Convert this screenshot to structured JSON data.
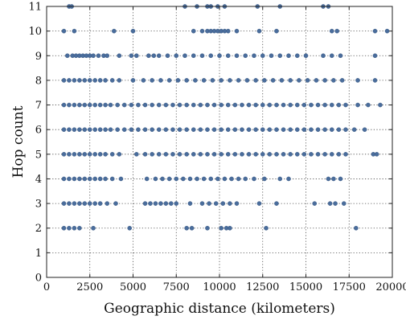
{
  "chart_data": {
    "type": "scatter",
    "xlabel": "Geographic distance (kilometers)",
    "ylabel": "Hop count",
    "xlim": [
      0,
      20000
    ],
    "ylim": [
      0,
      11
    ],
    "x_ticks": [
      0,
      2500,
      5000,
      7500,
      10000,
      12500,
      15000,
      17500,
      20000
    ],
    "y_ticks": [
      0,
      1,
      2,
      3,
      4,
      5,
      6,
      7,
      8,
      9,
      10,
      11
    ],
    "grid": true,
    "marker_color": "#4a6d9c",
    "series": [
      {
        "points": [
          [
            1300,
            11
          ],
          [
            1450,
            11
          ],
          [
            8000,
            11
          ],
          [
            8700,
            11
          ],
          [
            9300,
            11
          ],
          [
            9500,
            11
          ],
          [
            9900,
            11
          ],
          [
            10300,
            11
          ],
          [
            12200,
            11
          ],
          [
            13500,
            11
          ],
          [
            16000,
            11
          ],
          [
            16300,
            11
          ],
          [
            1000,
            10
          ],
          [
            1600,
            10
          ],
          [
            3900,
            10
          ],
          [
            5000,
            10
          ],
          [
            8500,
            10
          ],
          [
            9000,
            10
          ],
          [
            9300,
            10
          ],
          [
            9500,
            10
          ],
          [
            9700,
            10
          ],
          [
            9900,
            10
          ],
          [
            10100,
            10
          ],
          [
            10300,
            10
          ],
          [
            10500,
            10
          ],
          [
            11000,
            10
          ],
          [
            12300,
            10
          ],
          [
            13300,
            10
          ],
          [
            16500,
            10
          ],
          [
            16800,
            10
          ],
          [
            19000,
            10
          ],
          [
            19700,
            10
          ],
          [
            1200,
            9
          ],
          [
            1500,
            9
          ],
          [
            1700,
            9
          ],
          [
            1900,
            9
          ],
          [
            2100,
            9
          ],
          [
            2300,
            9
          ],
          [
            2500,
            9
          ],
          [
            2700,
            9
          ],
          [
            3000,
            9
          ],
          [
            3300,
            9
          ],
          [
            3500,
            9
          ],
          [
            4200,
            9
          ],
          [
            4900,
            9
          ],
          [
            5200,
            9
          ],
          [
            5900,
            9
          ],
          [
            6200,
            9
          ],
          [
            6500,
            9
          ],
          [
            7000,
            9
          ],
          [
            7500,
            9
          ],
          [
            8000,
            9
          ],
          [
            8500,
            9
          ],
          [
            9000,
            9
          ],
          [
            9500,
            9
          ],
          [
            10000,
            9
          ],
          [
            10500,
            9
          ],
          [
            11000,
            9
          ],
          [
            11500,
            9
          ],
          [
            12000,
            9
          ],
          [
            12500,
            9
          ],
          [
            13000,
            9
          ],
          [
            13500,
            9
          ],
          [
            14000,
            9
          ],
          [
            14500,
            9
          ],
          [
            15000,
            9
          ],
          [
            16000,
            9
          ],
          [
            16500,
            9
          ],
          [
            17000,
            9
          ],
          [
            19000,
            9
          ],
          [
            1000,
            8
          ],
          [
            1300,
            8
          ],
          [
            1600,
            8
          ],
          [
            1900,
            8
          ],
          [
            2200,
            8
          ],
          [
            2500,
            8
          ],
          [
            2800,
            8
          ],
          [
            3100,
            8
          ],
          [
            3400,
            8
          ],
          [
            3800,
            8
          ],
          [
            4200,
            8
          ],
          [
            5000,
            8
          ],
          [
            5600,
            8
          ],
          [
            6100,
            8
          ],
          [
            6600,
            8
          ],
          [
            7100,
            8
          ],
          [
            7600,
            8
          ],
          [
            8100,
            8
          ],
          [
            8600,
            8
          ],
          [
            9100,
            8
          ],
          [
            9600,
            8
          ],
          [
            10100,
            8
          ],
          [
            10600,
            8
          ],
          [
            11100,
            8
          ],
          [
            11600,
            8
          ],
          [
            12100,
            8
          ],
          [
            12600,
            8
          ],
          [
            13100,
            8
          ],
          [
            13600,
            8
          ],
          [
            14100,
            8
          ],
          [
            14600,
            8
          ],
          [
            15100,
            8
          ],
          [
            15600,
            8
          ],
          [
            16100,
            8
          ],
          [
            16600,
            8
          ],
          [
            17100,
            8
          ],
          [
            18000,
            8
          ],
          [
            19000,
            8
          ],
          [
            1000,
            7
          ],
          [
            1300,
            7
          ],
          [
            1600,
            7
          ],
          [
            1900,
            7
          ],
          [
            2200,
            7
          ],
          [
            2500,
            7
          ],
          [
            2800,
            7
          ],
          [
            3100,
            7
          ],
          [
            3400,
            7
          ],
          [
            3700,
            7
          ],
          [
            4100,
            7
          ],
          [
            4500,
            7
          ],
          [
            4900,
            7
          ],
          [
            5300,
            7
          ],
          [
            5700,
            7
          ],
          [
            6100,
            7
          ],
          [
            6500,
            7
          ],
          [
            6900,
            7
          ],
          [
            7300,
            7
          ],
          [
            7700,
            7
          ],
          [
            8100,
            7
          ],
          [
            8500,
            7
          ],
          [
            8900,
            7
          ],
          [
            9300,
            7
          ],
          [
            9700,
            7
          ],
          [
            10100,
            7
          ],
          [
            10500,
            7
          ],
          [
            10900,
            7
          ],
          [
            11300,
            7
          ],
          [
            11700,
            7
          ],
          [
            12100,
            7
          ],
          [
            12500,
            7
          ],
          [
            12900,
            7
          ],
          [
            13300,
            7
          ],
          [
            13700,
            7
          ],
          [
            14100,
            7
          ],
          [
            14500,
            7
          ],
          [
            14900,
            7
          ],
          [
            15300,
            7
          ],
          [
            15700,
            7
          ],
          [
            16100,
            7
          ],
          [
            16500,
            7
          ],
          [
            16900,
            7
          ],
          [
            17300,
            7
          ],
          [
            18000,
            7
          ],
          [
            18600,
            7
          ],
          [
            19300,
            7
          ],
          [
            1000,
            6
          ],
          [
            1300,
            6
          ],
          [
            1600,
            6
          ],
          [
            1900,
            6
          ],
          [
            2200,
            6
          ],
          [
            2500,
            6
          ],
          [
            2800,
            6
          ],
          [
            3100,
            6
          ],
          [
            3400,
            6
          ],
          [
            3700,
            6
          ],
          [
            4100,
            6
          ],
          [
            4500,
            6
          ],
          [
            4900,
            6
          ],
          [
            5300,
            6
          ],
          [
            5700,
            6
          ],
          [
            6100,
            6
          ],
          [
            6500,
            6
          ],
          [
            6900,
            6
          ],
          [
            7300,
            6
          ],
          [
            7700,
            6
          ],
          [
            8100,
            6
          ],
          [
            8500,
            6
          ],
          [
            8900,
            6
          ],
          [
            9300,
            6
          ],
          [
            9700,
            6
          ],
          [
            10100,
            6
          ],
          [
            10500,
            6
          ],
          [
            10900,
            6
          ],
          [
            11300,
            6
          ],
          [
            11700,
            6
          ],
          [
            12100,
            6
          ],
          [
            12500,
            6
          ],
          [
            12900,
            6
          ],
          [
            13300,
            6
          ],
          [
            13700,
            6
          ],
          [
            14100,
            6
          ],
          [
            14500,
            6
          ],
          [
            14900,
            6
          ],
          [
            15300,
            6
          ],
          [
            15700,
            6
          ],
          [
            16100,
            6
          ],
          [
            16500,
            6
          ],
          [
            16900,
            6
          ],
          [
            17300,
            6
          ],
          [
            17800,
            6
          ],
          [
            18400,
            6
          ],
          [
            1000,
            5
          ],
          [
            1300,
            5
          ],
          [
            1600,
            5
          ],
          [
            1900,
            5
          ],
          [
            2200,
            5
          ],
          [
            2500,
            5
          ],
          [
            2800,
            5
          ],
          [
            3100,
            5
          ],
          [
            3400,
            5
          ],
          [
            3800,
            5
          ],
          [
            4200,
            5
          ],
          [
            5200,
            5
          ],
          [
            5700,
            5
          ],
          [
            6100,
            5
          ],
          [
            6500,
            5
          ],
          [
            6900,
            5
          ],
          [
            7300,
            5
          ],
          [
            7700,
            5
          ],
          [
            8100,
            5
          ],
          [
            8500,
            5
          ],
          [
            8900,
            5
          ],
          [
            9300,
            5
          ],
          [
            9700,
            5
          ],
          [
            10100,
            5
          ],
          [
            10500,
            5
          ],
          [
            10900,
            5
          ],
          [
            11300,
            5
          ],
          [
            11700,
            5
          ],
          [
            12100,
            5
          ],
          [
            12500,
            5
          ],
          [
            12900,
            5
          ],
          [
            13300,
            5
          ],
          [
            13700,
            5
          ],
          [
            14100,
            5
          ],
          [
            14500,
            5
          ],
          [
            14900,
            5
          ],
          [
            15300,
            5
          ],
          [
            15700,
            5
          ],
          [
            16100,
            5
          ],
          [
            16500,
            5
          ],
          [
            16900,
            5
          ],
          [
            17300,
            5
          ],
          [
            18900,
            5
          ],
          [
            19100,
            5
          ],
          [
            1000,
            4
          ],
          [
            1300,
            4
          ],
          [
            1600,
            4
          ],
          [
            1900,
            4
          ],
          [
            2200,
            4
          ],
          [
            2500,
            4
          ],
          [
            2800,
            4
          ],
          [
            3100,
            4
          ],
          [
            3400,
            4
          ],
          [
            3800,
            4
          ],
          [
            4300,
            4
          ],
          [
            5800,
            4
          ],
          [
            6300,
            4
          ],
          [
            6700,
            4
          ],
          [
            7100,
            4
          ],
          [
            7500,
            4
          ],
          [
            7900,
            4
          ],
          [
            8300,
            4
          ],
          [
            8700,
            4
          ],
          [
            9100,
            4
          ],
          [
            9500,
            4
          ],
          [
            9900,
            4
          ],
          [
            10300,
            4
          ],
          [
            10700,
            4
          ],
          [
            11100,
            4
          ],
          [
            11500,
            4
          ],
          [
            12000,
            4
          ],
          [
            12600,
            4
          ],
          [
            13500,
            4
          ],
          [
            14000,
            4
          ],
          [
            16300,
            4
          ],
          [
            16600,
            4
          ],
          [
            17000,
            4
          ],
          [
            1000,
            3
          ],
          [
            1300,
            3
          ],
          [
            1600,
            3
          ],
          [
            1900,
            3
          ],
          [
            2200,
            3
          ],
          [
            2500,
            3
          ],
          [
            2800,
            3
          ],
          [
            3100,
            3
          ],
          [
            3500,
            3
          ],
          [
            4000,
            3
          ],
          [
            5700,
            3
          ],
          [
            6000,
            3
          ],
          [
            6300,
            3
          ],
          [
            6600,
            3
          ],
          [
            6900,
            3
          ],
          [
            7200,
            3
          ],
          [
            7500,
            3
          ],
          [
            8300,
            3
          ],
          [
            9000,
            3
          ],
          [
            9400,
            3
          ],
          [
            9800,
            3
          ],
          [
            10200,
            3
          ],
          [
            10600,
            3
          ],
          [
            11000,
            3
          ],
          [
            12300,
            3
          ],
          [
            13300,
            3
          ],
          [
            15500,
            3
          ],
          [
            16400,
            3
          ],
          [
            16700,
            3
          ],
          [
            17200,
            3
          ],
          [
            1000,
            2
          ],
          [
            1300,
            2
          ],
          [
            1600,
            2
          ],
          [
            1900,
            2
          ],
          [
            2700,
            2
          ],
          [
            4800,
            2
          ],
          [
            8100,
            2
          ],
          [
            8400,
            2
          ],
          [
            9300,
            2
          ],
          [
            10100,
            2
          ],
          [
            10400,
            2
          ],
          [
            10600,
            2
          ],
          [
            12700,
            2
          ],
          [
            17900,
            2
          ]
        ]
      }
    ]
  }
}
